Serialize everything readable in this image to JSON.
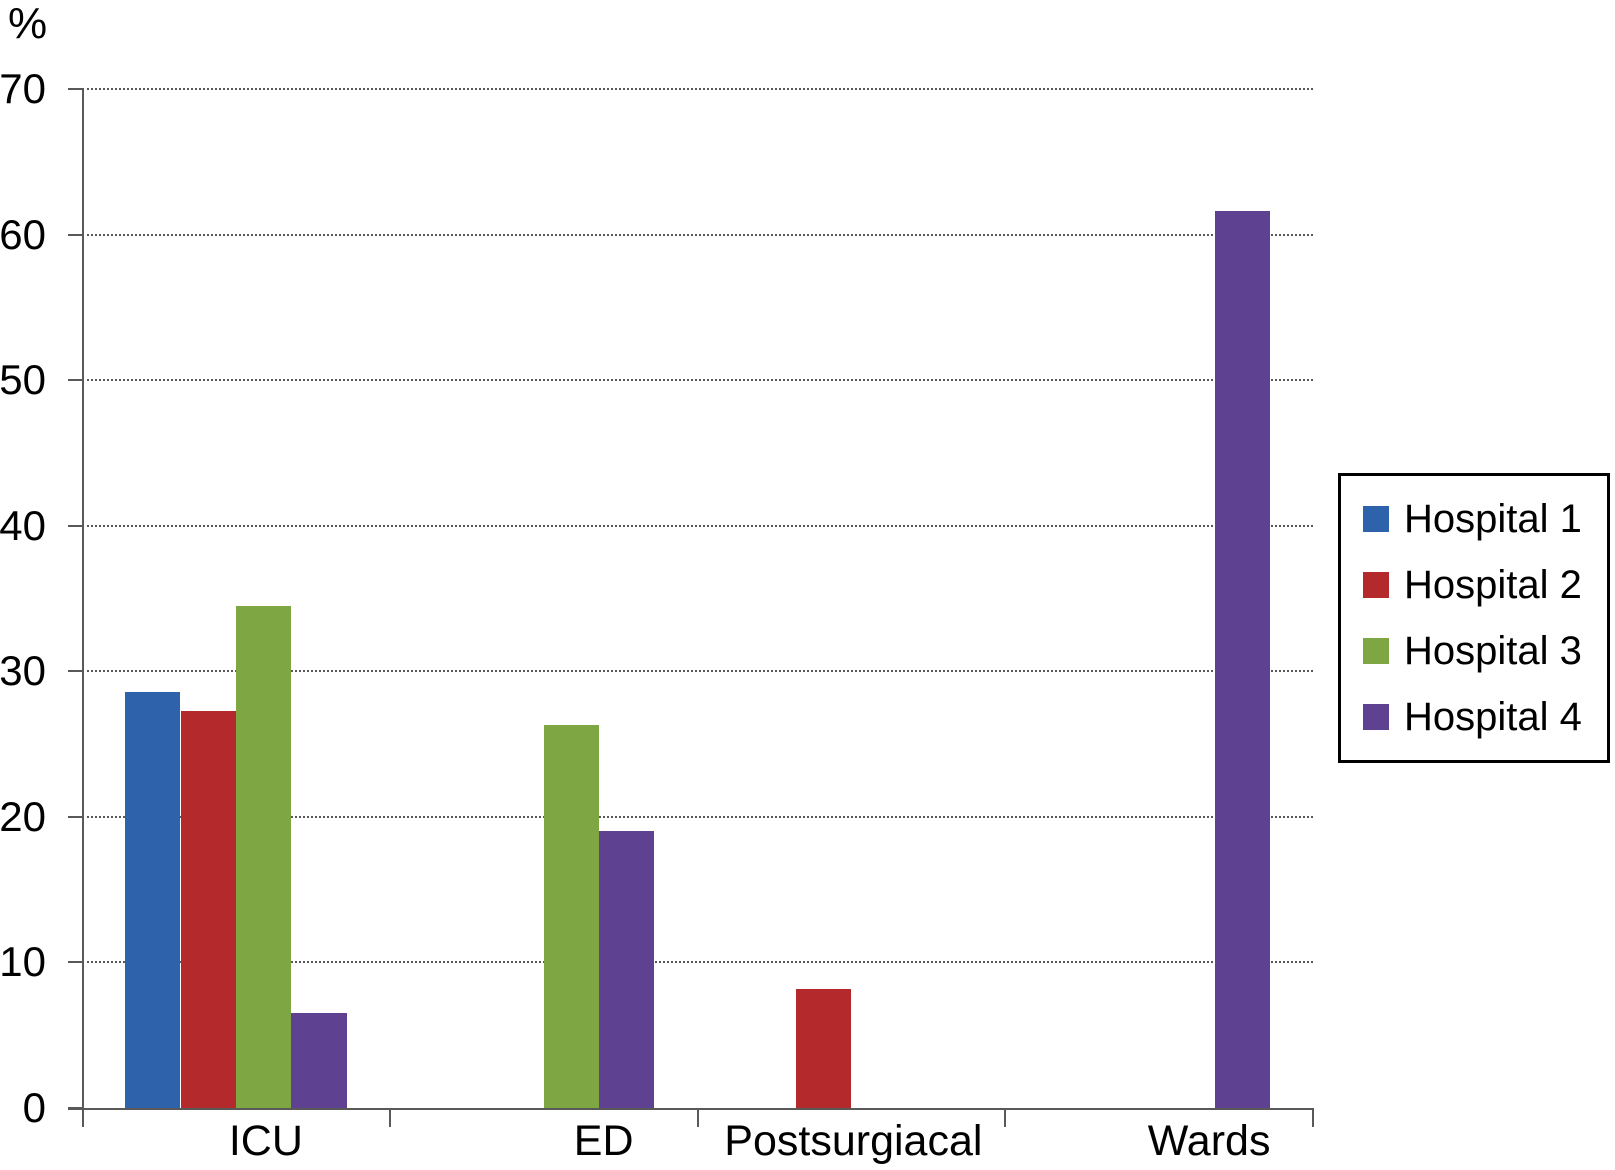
{
  "figure": {
    "ylabel": "%"
  },
  "chart_data": {
    "type": "bar",
    "title": "",
    "xlabel": "",
    "ylabel": "%",
    "categories": [
      "ICU",
      "ED",
      "Postsurgiacal",
      "Wards"
    ],
    "series": [
      {
        "name": "Hospital 1",
        "color": "#2E63AC",
        "values": [
          28.6,
          0,
          0,
          0
        ]
      },
      {
        "name": "Hospital 2",
        "color": "#B3292C",
        "values": [
          27.3,
          0,
          8.2,
          0
        ]
      },
      {
        "name": "Hospital 3",
        "color": "#7EA642",
        "values": [
          34.5,
          26.3,
          0,
          0
        ]
      },
      {
        "name": "Hospital 4",
        "color": "#5E4191",
        "values": [
          6.5,
          19.0,
          0,
          61.6
        ]
      }
    ],
    "ylim": [
      0,
      70
    ],
    "yticks": [
      0,
      10,
      20,
      30,
      40,
      50,
      60,
      70
    ],
    "grid": true,
    "gridline_color": "#595959",
    "axis_color": "#595959",
    "legend_position": "right",
    "legend_border_color": "#000000"
  }
}
